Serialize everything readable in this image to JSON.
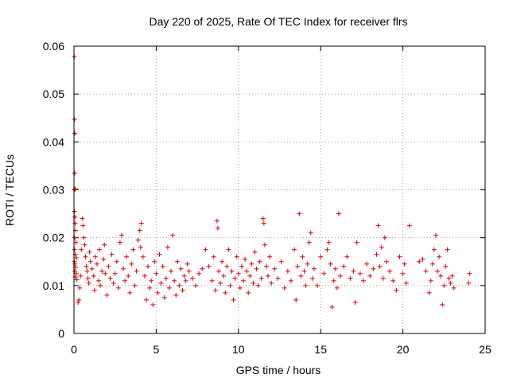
{
  "chart_data": {
    "type": "scatter",
    "title": "Day 220 of 2025, Rate Of TEC Index for receiver flrs",
    "xlabel": "GPS time / hours",
    "ylabel": "ROTI / TECUs",
    "xlim": [
      0,
      25
    ],
    "ylim": [
      0,
      0.06
    ],
    "xticks": [
      0,
      5,
      10,
      15,
      20,
      25
    ],
    "yticks": [
      0,
      0.01,
      0.02,
      0.03,
      0.04,
      0.05,
      0.06
    ],
    "xtick_labels": [
      "0",
      "5",
      "10",
      "15",
      "20",
      "25"
    ],
    "ytick_labels": [
      "0",
      "0.01",
      "0.02",
      "0.03",
      "0.04",
      "0.05",
      "0.06"
    ],
    "grid": true,
    "marker": "+",
    "color": "#e00000",
    "series": [
      {
        "name": "flrs",
        "points": [
          [
            0.02,
            0.0578
          ],
          [
            0.03,
            0.0447
          ],
          [
            0.05,
            0.0418
          ],
          [
            0.04,
            0.0335
          ],
          [
            0.05,
            0.03
          ],
          [
            0.08,
            0.0302
          ],
          [
            0.03,
            0.0255
          ],
          [
            0.06,
            0.0243
          ],
          [
            0.07,
            0.023
          ],
          [
            0.1,
            0.0215
          ],
          [
            0.05,
            0.02
          ],
          [
            0.12,
            0.019
          ],
          [
            0.03,
            0.0175
          ],
          [
            0.08,
            0.0165
          ],
          [
            0.15,
            0.0158
          ],
          [
            0.02,
            0.015
          ],
          [
            0.06,
            0.0145
          ],
          [
            0.1,
            0.0138
          ],
          [
            0.04,
            0.013
          ],
          [
            0.14,
            0.0125
          ],
          [
            0.08,
            0.0118
          ],
          [
            0.18,
            0.0112
          ],
          [
            0.25,
            0.0065
          ],
          [
            0.3,
            0.007
          ],
          [
            0.35,
            0.0095
          ],
          [
            0.4,
            0.012
          ],
          [
            0.45,
            0.0175
          ],
          [
            0.5,
            0.024
          ],
          [
            0.55,
            0.0225
          ],
          [
            0.6,
            0.02
          ],
          [
            0.65,
            0.0185
          ],
          [
            0.7,
            0.016
          ],
          [
            0.75,
            0.014
          ],
          [
            0.8,
            0.013
          ],
          [
            0.85,
            0.0115
          ],
          [
            0.9,
            0.0105
          ],
          [
            0.95,
            0.017
          ],
          [
            1.0,
            0.015
          ],
          [
            1.1,
            0.0135
          ],
          [
            1.2,
            0.012
          ],
          [
            1.25,
            0.009
          ],
          [
            1.3,
            0.016
          ],
          [
            1.4,
            0.0145
          ],
          [
            1.5,
            0.011
          ],
          [
            1.55,
            0.0175
          ],
          [
            1.6,
            0.01
          ],
          [
            1.7,
            0.013
          ],
          [
            1.8,
            0.0155
          ],
          [
            1.85,
            0.0185
          ],
          [
            1.9,
            0.0125
          ],
          [
            2.0,
            0.008
          ],
          [
            2.1,
            0.014
          ],
          [
            2.2,
            0.0115
          ],
          [
            2.3,
            0.0165
          ],
          [
            2.4,
            0.0105
          ],
          [
            2.5,
            0.0125
          ],
          [
            2.6,
            0.015
          ],
          [
            2.7,
            0.0095
          ],
          [
            2.8,
            0.019
          ],
          [
            2.9,
            0.0205
          ],
          [
            3.0,
            0.0135
          ],
          [
            3.1,
            0.011
          ],
          [
            3.2,
            0.016
          ],
          [
            3.3,
            0.012
          ],
          [
            3.4,
            0.0085
          ],
          [
            3.5,
            0.0145
          ],
          [
            3.6,
            0.0175
          ],
          [
            3.7,
            0.01
          ],
          [
            3.8,
            0.013
          ],
          [
            3.9,
            0.0195
          ],
          [
            4.0,
            0.0215
          ],
          [
            4.05,
            0.018
          ],
          [
            4.1,
            0.023
          ],
          [
            4.2,
            0.016
          ],
          [
            4.3,
            0.012
          ],
          [
            4.4,
            0.007
          ],
          [
            4.5,
            0.014
          ],
          [
            4.6,
            0.0095
          ],
          [
            4.7,
            0.011
          ],
          [
            4.8,
            0.006
          ],
          [
            4.9,
            0.015
          ],
          [
            5.0,
            0.0125
          ],
          [
            5.1,
            0.0085
          ],
          [
            5.2,
            0.0165
          ],
          [
            5.3,
            0.0105
          ],
          [
            5.4,
            0.014
          ],
          [
            5.5,
            0.0075
          ],
          [
            5.6,
            0.0115
          ],
          [
            5.7,
            0.018
          ],
          [
            5.8,
            0.0095
          ],
          [
            5.9,
            0.013
          ],
          [
            6.0,
            0.0205
          ],
          [
            6.1,
            0.011
          ],
          [
            6.2,
            0.008
          ],
          [
            6.3,
            0.015
          ],
          [
            6.4,
            0.01
          ],
          [
            6.5,
            0.0135
          ],
          [
            6.6,
            0.009
          ],
          [
            6.7,
            0.012
          ],
          [
            6.8,
            0.011
          ],
          [
            6.9,
            0.0145
          ],
          [
            7.0,
            0.013
          ],
          [
            7.2,
            0.0115
          ],
          [
            7.4,
            0.01
          ],
          [
            7.6,
            0.0125
          ],
          [
            7.8,
            0.0135
          ],
          [
            8.0,
            0.0175
          ],
          [
            8.2,
            0.014
          ],
          [
            8.4,
            0.011
          ],
          [
            8.5,
            0.016
          ],
          [
            8.6,
            0.009
          ],
          [
            8.7,
            0.0235
          ],
          [
            8.75,
            0.022
          ],
          [
            8.8,
            0.013
          ],
          [
            8.9,
            0.0105
          ],
          [
            9.0,
            0.015
          ],
          [
            9.1,
            0.012
          ],
          [
            9.2,
            0.0085
          ],
          [
            9.3,
            0.014
          ],
          [
            9.4,
            0.0175
          ],
          [
            9.5,
            0.01
          ],
          [
            9.6,
            0.013
          ],
          [
            9.7,
            0.007
          ],
          [
            9.8,
            0.0115
          ],
          [
            9.9,
            0.016
          ],
          [
            10.0,
            0.0125
          ],
          [
            10.1,
            0.0095
          ],
          [
            10.2,
            0.014
          ],
          [
            10.3,
            0.011
          ],
          [
            10.4,
            0.0155
          ],
          [
            10.5,
            0.013
          ],
          [
            10.6,
            0.0085
          ],
          [
            10.7,
            0.012
          ],
          [
            10.8,
            0.0145
          ],
          [
            10.9,
            0.0105
          ],
          [
            11.0,
            0.017
          ],
          [
            11.1,
            0.0135
          ],
          [
            11.2,
            0.01
          ],
          [
            11.3,
            0.015
          ],
          [
            11.4,
            0.0115
          ],
          [
            11.5,
            0.024
          ],
          [
            11.55,
            0.023
          ],
          [
            11.6,
            0.0185
          ],
          [
            11.7,
            0.014
          ],
          [
            11.8,
            0.012
          ],
          [
            11.9,
            0.016
          ],
          [
            12.0,
            0.0105
          ],
          [
            12.2,
            0.0135
          ],
          [
            12.4,
            0.0115
          ],
          [
            12.6,
            0.015
          ],
          [
            12.8,
            0.0095
          ],
          [
            13.0,
            0.013
          ],
          [
            13.2,
            0.011
          ],
          [
            13.4,
            0.0175
          ],
          [
            13.5,
            0.007
          ],
          [
            13.6,
            0.014
          ],
          [
            13.7,
            0.025
          ],
          [
            13.8,
            0.012
          ],
          [
            13.9,
            0.016
          ],
          [
            14.0,
            0.013
          ],
          [
            14.1,
            0.01
          ],
          [
            14.2,
            0.0145
          ],
          [
            14.3,
            0.019
          ],
          [
            14.4,
            0.021
          ],
          [
            14.5,
            0.0115
          ],
          [
            14.6,
            0.0135
          ],
          [
            14.8,
            0.01
          ],
          [
            15.0,
            0.016
          ],
          [
            15.2,
            0.0125
          ],
          [
            15.4,
            0.0175
          ],
          [
            15.5,
            0.019
          ],
          [
            15.6,
            0.0145
          ],
          [
            15.7,
            0.0055
          ],
          [
            15.8,
            0.011
          ],
          [
            15.9,
            0.0135
          ],
          [
            16.0,
            0.0095
          ],
          [
            16.1,
            0.025
          ],
          [
            16.2,
            0.012
          ],
          [
            16.4,
            0.014
          ],
          [
            16.6,
            0.016
          ],
          [
            16.8,
            0.0115
          ],
          [
            17.0,
            0.013
          ],
          [
            17.1,
            0.0065
          ],
          [
            17.2,
            0.019
          ],
          [
            17.4,
            0.0125
          ],
          [
            17.6,
            0.011
          ],
          [
            17.8,
            0.0145
          ],
          [
            18.0,
            0.012
          ],
          [
            18.2,
            0.0135
          ],
          [
            18.4,
            0.0165
          ],
          [
            18.5,
            0.0225
          ],
          [
            18.6,
            0.014
          ],
          [
            18.7,
            0.018
          ],
          [
            18.8,
            0.0115
          ],
          [
            18.9,
            0.02
          ],
          [
            19.0,
            0.015
          ],
          [
            19.2,
            0.013
          ],
          [
            19.4,
            0.011
          ],
          [
            19.6,
            0.009
          ],
          [
            19.8,
            0.016
          ],
          [
            20.0,
            0.0125
          ],
          [
            20.1,
            0.0145
          ],
          [
            20.2,
            0.0105
          ],
          [
            20.4,
            0.0225
          ],
          [
            21.0,
            0.015
          ],
          [
            21.2,
            0.0155
          ],
          [
            21.4,
            0.013
          ],
          [
            21.6,
            0.0085
          ],
          [
            21.7,
            0.011
          ],
          [
            21.8,
            0.0145
          ],
          [
            21.9,
            0.0175
          ],
          [
            22.0,
            0.0205
          ],
          [
            22.1,
            0.013
          ],
          [
            22.2,
            0.016
          ],
          [
            22.3,
            0.012
          ],
          [
            22.4,
            0.006
          ],
          [
            22.5,
            0.01
          ],
          [
            22.6,
            0.014
          ],
          [
            22.7,
            0.0175
          ],
          [
            22.8,
            0.0115
          ],
          [
            22.9,
            0.0105
          ],
          [
            23.0,
            0.012
          ],
          [
            23.1,
            0.0095
          ],
          [
            24.0,
            0.0105
          ],
          [
            24.05,
            0.0125
          ]
        ]
      }
    ]
  }
}
